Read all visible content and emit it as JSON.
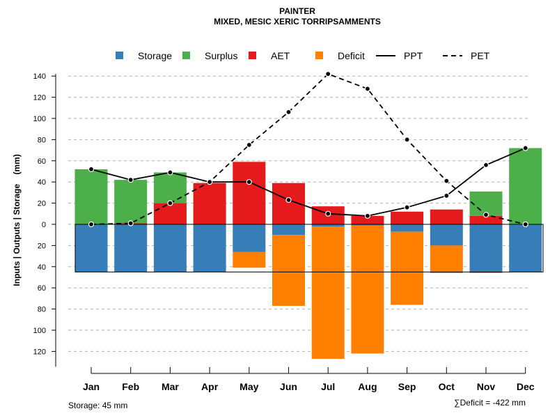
{
  "chart_data": {
    "type": "bar",
    "title": "PAINTER",
    "subtitle": "MIXED, MESIC XERIC TORRIPSAMMENTS",
    "ylabel": "Inputs | Outputs | Storage    (mm)",
    "xlabel": "",
    "ylim": [
      -128,
      142
    ],
    "yticks": [
      -120,
      -100,
      -80,
      -60,
      -40,
      -20,
      0,
      20,
      40,
      60,
      80,
      100,
      120,
      140
    ],
    "ytick_labels": [
      "120",
      "100",
      "80",
      "60",
      "40",
      "20",
      "0",
      "20",
      "40",
      "60",
      "80",
      "100",
      "120",
      "140"
    ],
    "grid": true,
    "legend_position": "top",
    "categories": [
      "Jan",
      "Feb",
      "Mar",
      "Apr",
      "May",
      "Jun",
      "Jul",
      "Aug",
      "Sep",
      "Oct",
      "Nov",
      "Dec"
    ],
    "storage_capacity": 45,
    "series": [
      {
        "name": "Storage",
        "kind": "bar",
        "color": "#377EB8",
        "values": [
          45,
          45,
          45,
          45,
          26,
          10,
          2,
          1,
          7,
          20,
          45,
          45
        ]
      },
      {
        "name": "Surplus",
        "kind": "bar",
        "color": "#4DAF4A",
        "values": [
          52,
          41,
          29,
          0,
          0,
          0,
          0,
          0,
          0,
          0,
          23,
          72
        ]
      },
      {
        "name": "AET",
        "kind": "bar",
        "color": "#E41A1C",
        "values": [
          0,
          1,
          20,
          39,
          59,
          39,
          17,
          8,
          12,
          14,
          8,
          0
        ]
      },
      {
        "name": "Deficit",
        "kind": "bar",
        "color": "#FF7F00",
        "values": [
          0,
          0,
          0,
          0,
          15,
          67,
          125,
          121,
          69,
          26,
          1,
          0
        ]
      },
      {
        "name": "PPT",
        "kind": "line",
        "dash": false,
        "color": "#000000",
        "values": [
          52,
          42,
          49,
          40,
          40,
          23,
          10,
          8,
          16,
          27,
          56,
          72
        ]
      },
      {
        "name": "PET",
        "kind": "line",
        "dash": true,
        "color": "#000000",
        "values": [
          0,
          1,
          20,
          40,
          75,
          106,
          142,
          128,
          80,
          41,
          9,
          0
        ]
      }
    ],
    "annotations": {
      "storage_note": "Storage: 45 mm",
      "deficit_note": "∑Deficit = -422 mm"
    }
  }
}
